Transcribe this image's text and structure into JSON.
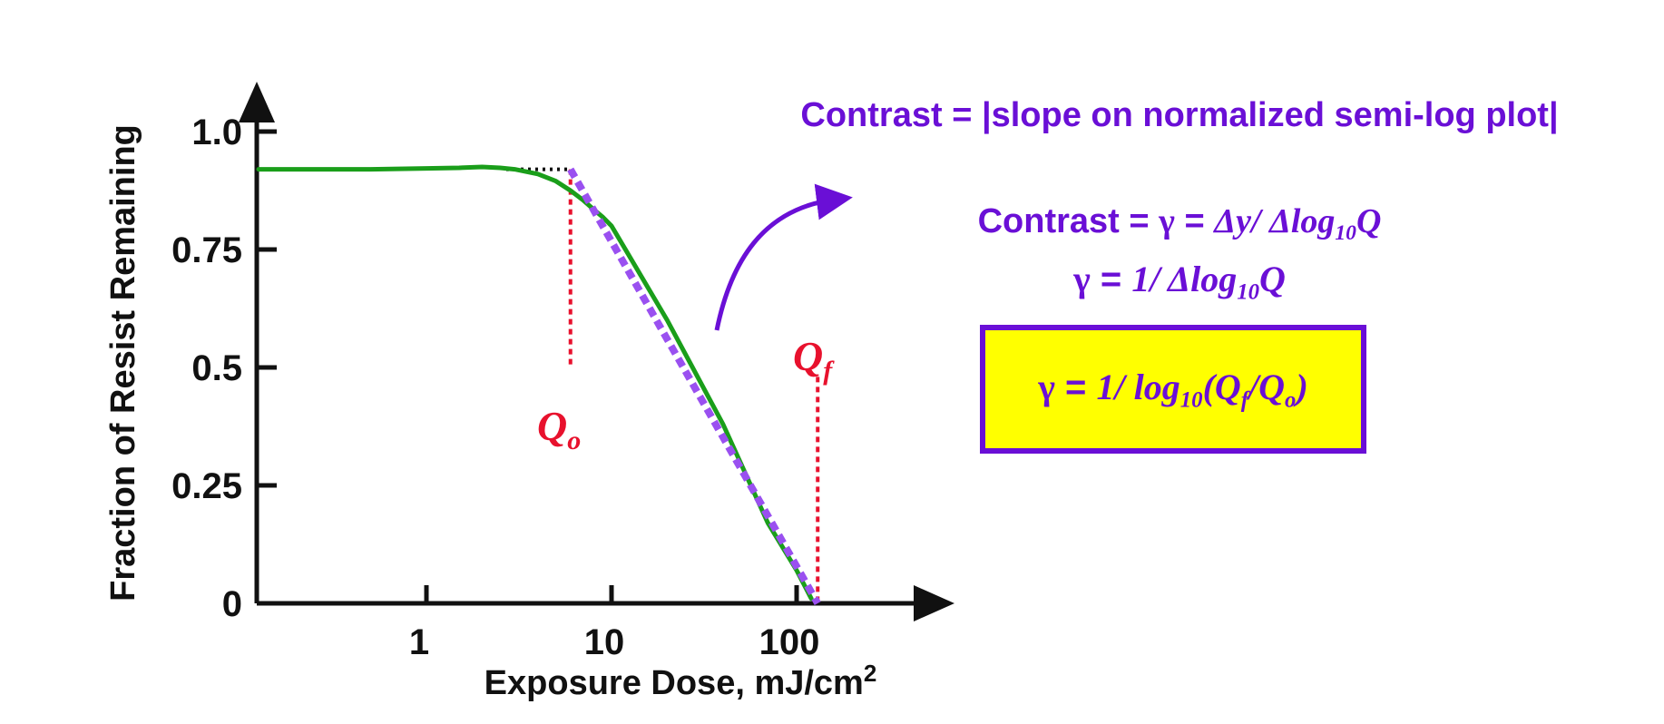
{
  "chart_data": {
    "type": "line",
    "xscale": "log",
    "xlabel": "Exposure Dose, mJ/cm",
    "xlabel_sup": "2",
    "ylabel": "Fraction of Resist Remaining",
    "xticks": [
      1,
      10,
      100
    ],
    "xtick_labels": [
      "1",
      "10",
      "100"
    ],
    "yticks": [
      0,
      0.25,
      0.5,
      0.75,
      1.0
    ],
    "ytick_labels": [
      "0",
      "0.25",
      "0.5",
      "0.75",
      "1.0"
    ],
    "xlim": [
      0.1,
      400
    ],
    "ylim": [
      0,
      1.1
    ],
    "grid": false,
    "series": [
      {
        "color": "#1a9e1a",
        "style": "solid",
        "x": [
          0.1,
          0.5,
          1,
          1.5,
          2,
          2.5,
          3,
          4,
          5,
          6,
          7,
          8,
          9,
          10,
          20,
          40,
          70,
          100,
          120
        ],
        "y": [
          0.92,
          0.92,
          0.922,
          0.923,
          0.925,
          0.923,
          0.92,
          0.91,
          0.895,
          0.875,
          0.855,
          0.835,
          0.818,
          0.8,
          0.6,
          0.38,
          0.17,
          0.07,
          0.01
        ]
      },
      {
        "color": "#9a50f0",
        "style": "dashed",
        "x": [
          6,
          130
        ],
        "y": [
          0.92,
          0.0
        ]
      }
    ],
    "annotations": [
      {
        "text": "Q",
        "subscript": "o",
        "x": 6,
        "y_from": 0.92,
        "y_to": 0.5,
        "color": "#e8112d"
      },
      {
        "text": "Q",
        "subscript": "f",
        "x": 130,
        "y_from": 0.48,
        "y_to": 0.0,
        "color": "#e8112d"
      }
    ],
    "reference_line": {
      "x": [
        2.7,
        6
      ],
      "y": [
        0.92,
        0.92
      ],
      "color": "#111111",
      "style": "dotted"
    }
  },
  "formulas": {
    "line1": "Contrast = |slope on normalized semi-log plot|",
    "line2_prefix": "Contrast = ",
    "gamma": "γ",
    "line2_eq": " = ",
    "line2_rhs": "Δy/ Δlog",
    "ten": "10",
    "q": "Q",
    "line3_eq": " = ",
    "line3_rhs": "1/ Δlog",
    "box_rhs": "1/ log",
    "box_open": "(Q",
    "box_f": "f",
    "box_slash": "/Q",
    "box_o": "o",
    "box_close": ")"
  },
  "colors": {
    "accent": "#6a0fd6",
    "box_fill": "#ffff00",
    "annotation": "#e8112d",
    "curve": "#1a9e1a",
    "fit": "#9a50f0"
  }
}
